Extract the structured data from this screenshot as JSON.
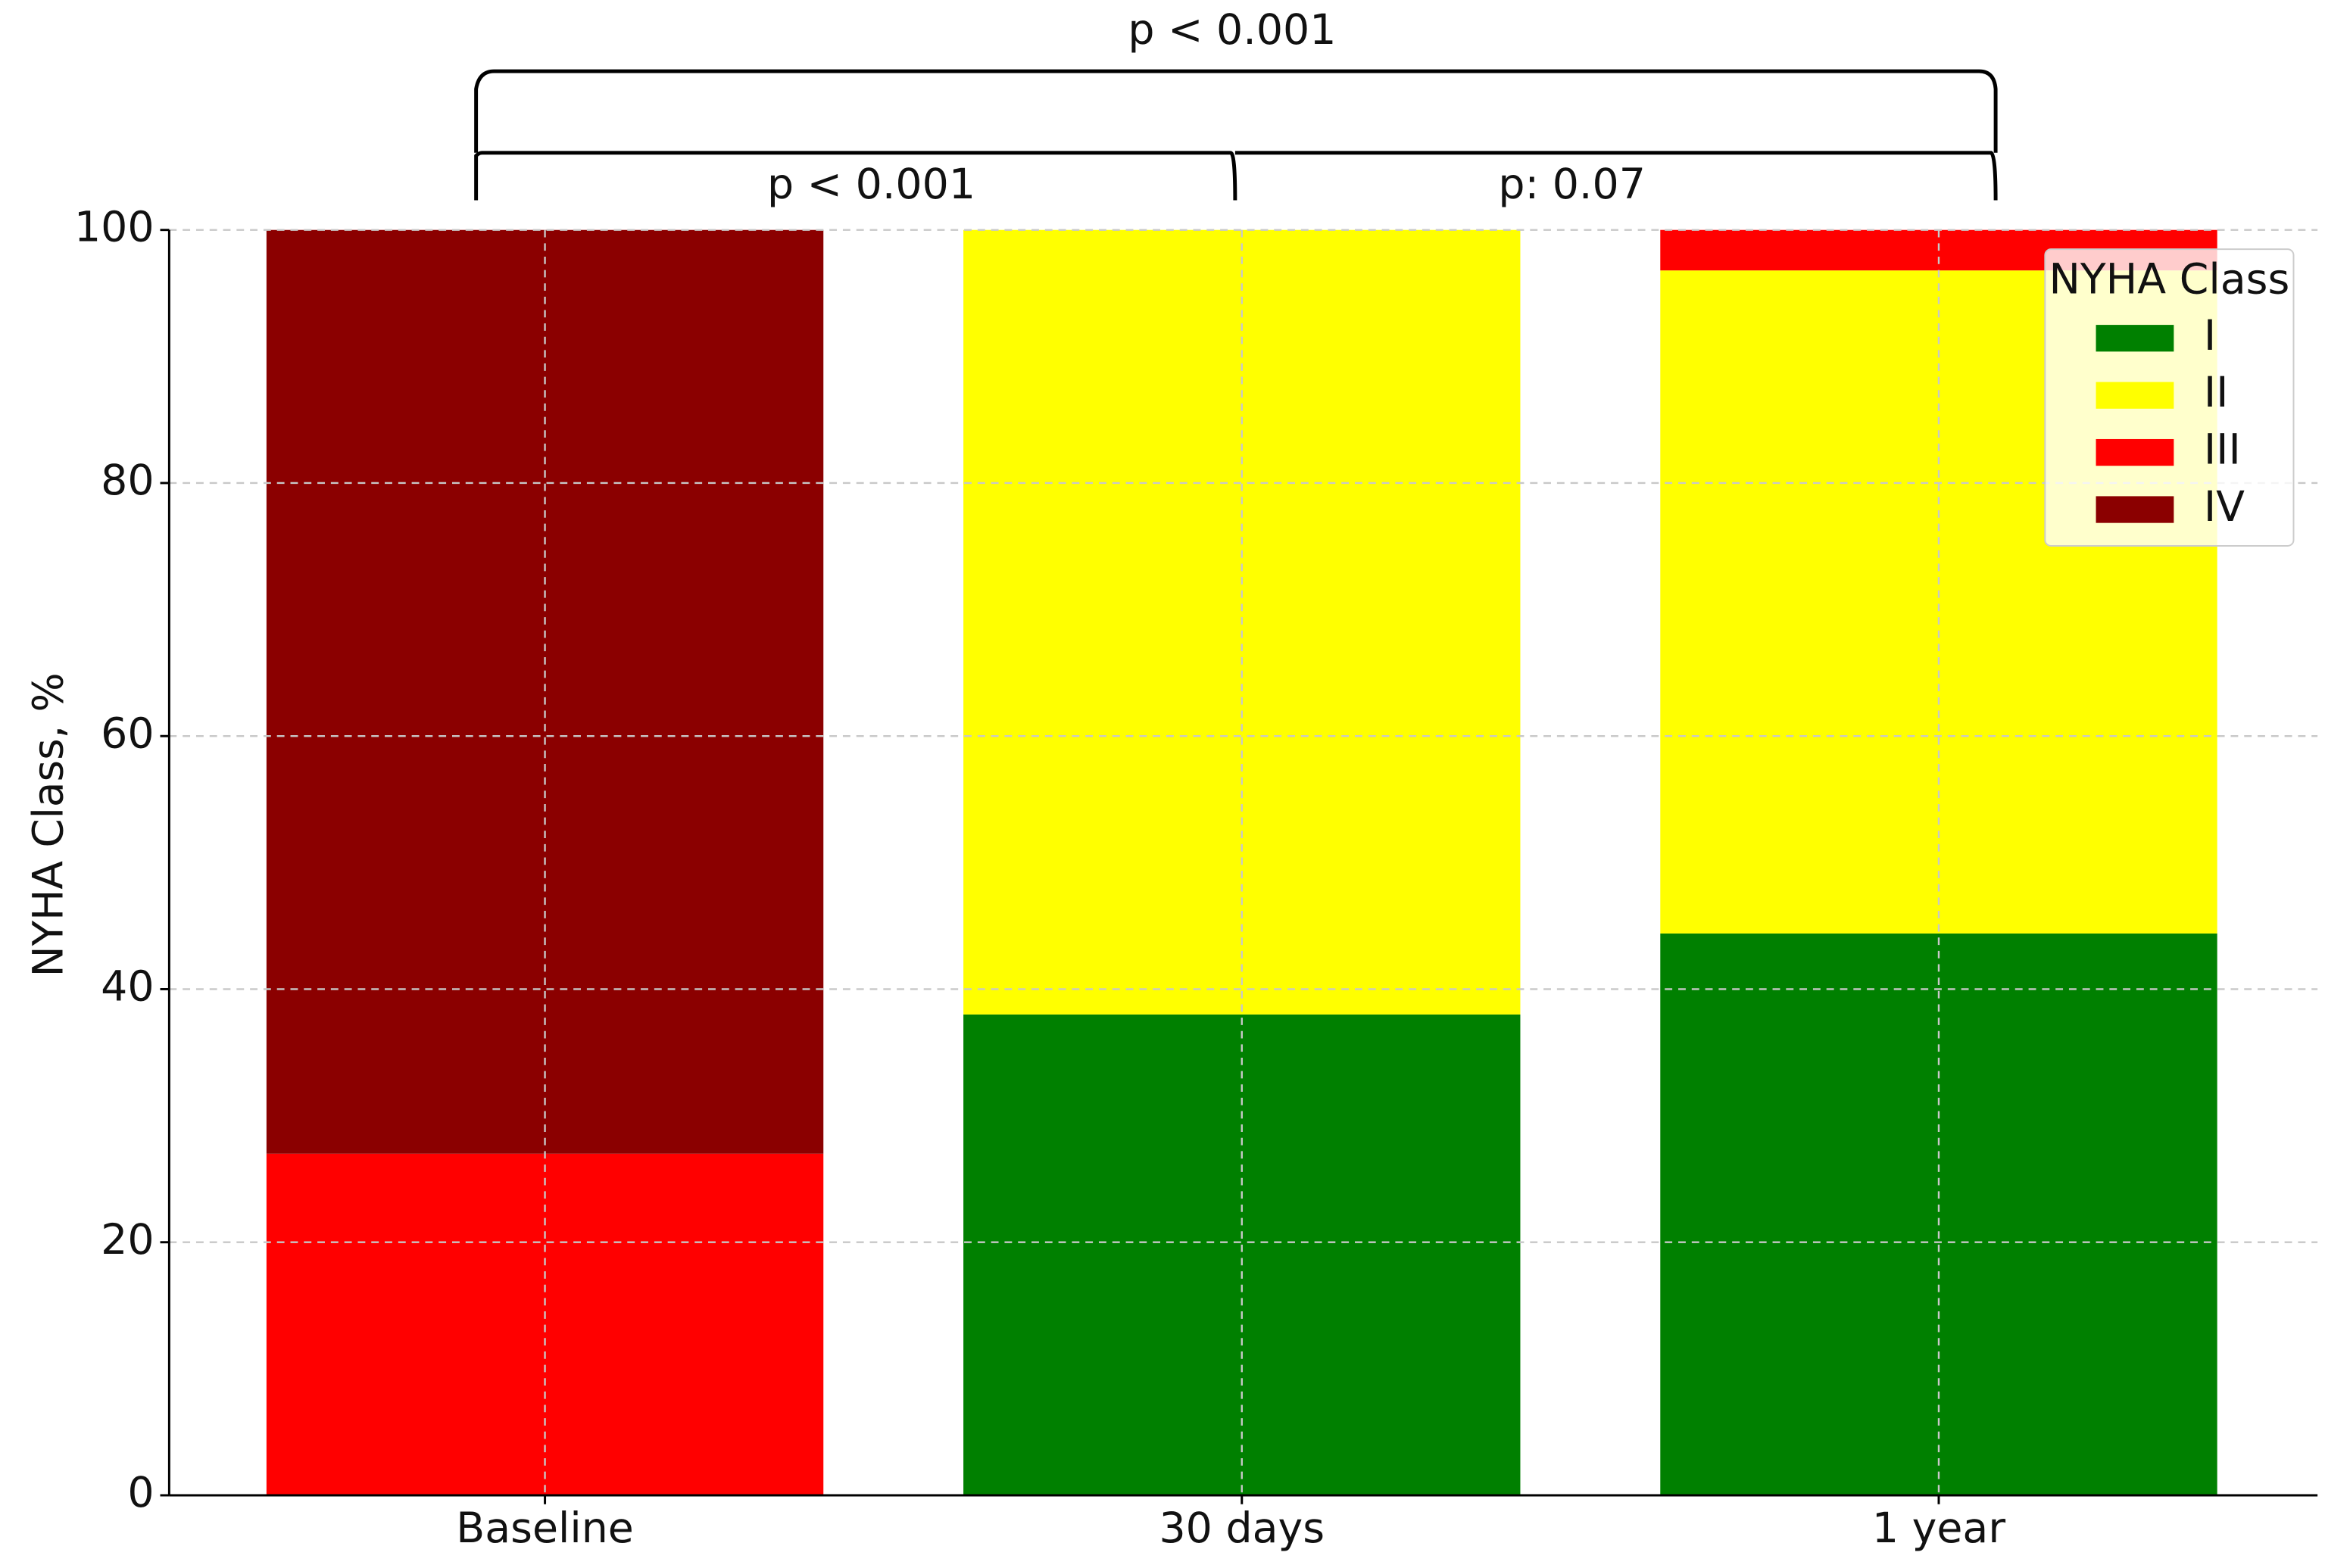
{
  "chart_data": {
    "type": "stacked_bar",
    "y_label": "NYHA Class, %",
    "categories": [
      "Baseline",
      "30 days",
      "1 year"
    ],
    "series": [
      {
        "name": "I",
        "color": "#008000",
        "values": [
          0,
          38,
          44.4
        ]
      },
      {
        "name": "II",
        "color": "#ffff00",
        "values": [
          0,
          62,
          52.4
        ]
      },
      {
        "name": "III",
        "color": "#ff0000",
        "values": [
          27,
          0,
          3.2
        ]
      },
      {
        "name": "IV",
        "color": "#8b0000",
        "values": [
          73,
          0,
          0
        ]
      }
    ],
    "ylim": [
      0,
      100
    ],
    "yticks": [
      0,
      20,
      40,
      60,
      80,
      100
    ],
    "grid": true,
    "legend_title": "NYHA Class",
    "legend": "upper right",
    "annotations": [
      "p < 0.001",
      "p < 0.001",
      "p: 0.07"
    ]
  }
}
